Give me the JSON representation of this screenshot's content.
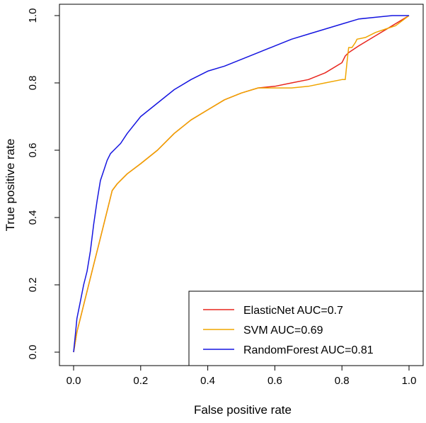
{
  "chart_data": {
    "type": "line",
    "title": "",
    "xlabel": "False positive rate",
    "ylabel": "True positive rate",
    "xlim": [
      0,
      1
    ],
    "ylim": [
      0,
      1
    ],
    "xticks": [
      "0.0",
      "0.2",
      "0.4",
      "0.6",
      "0.8",
      "1.0"
    ],
    "yticks": [
      "0.0",
      "0.2",
      "0.4",
      "0.6",
      "0.8",
      "1.0"
    ],
    "grid": false,
    "legend_position": "bottom-right",
    "series": [
      {
        "name": "ElasticNet",
        "legend_label": "ElasticNet AUC=0.7",
        "color": "#e8261e",
        "x": [
          0,
          0.005,
          0.01,
          0.02,
          0.03,
          0.045,
          0.06,
          0.075,
          0.09,
          0.105,
          0.115,
          0.13,
          0.16,
          0.2,
          0.25,
          0.3,
          0.35,
          0.4,
          0.45,
          0.5,
          0.55,
          0.6,
          0.65,
          0.7,
          0.75,
          0.8,
          0.81,
          0.82,
          0.85,
          0.9,
          0.95,
          1.0
        ],
        "y": [
          0,
          0.03,
          0.06,
          0.1,
          0.14,
          0.2,
          0.26,
          0.32,
          0.38,
          0.44,
          0.48,
          0.5,
          0.53,
          0.56,
          0.6,
          0.65,
          0.69,
          0.72,
          0.75,
          0.77,
          0.785,
          0.79,
          0.8,
          0.81,
          0.83,
          0.86,
          0.88,
          0.89,
          0.91,
          0.94,
          0.97,
          1.0
        ]
      },
      {
        "name": "SVM",
        "legend_label": "SVM AUC=0.69",
        "color": "#f0a500",
        "x": [
          0,
          0.005,
          0.01,
          0.02,
          0.03,
          0.045,
          0.06,
          0.075,
          0.09,
          0.105,
          0.115,
          0.13,
          0.16,
          0.2,
          0.25,
          0.3,
          0.35,
          0.4,
          0.45,
          0.5,
          0.55,
          0.56,
          0.6,
          0.65,
          0.7,
          0.75,
          0.8,
          0.81,
          0.815,
          0.82,
          0.83,
          0.84,
          0.845,
          0.87,
          0.9,
          0.93,
          0.96,
          0.98,
          1.0
        ],
        "y": [
          0,
          0.03,
          0.06,
          0.1,
          0.14,
          0.2,
          0.26,
          0.32,
          0.38,
          0.44,
          0.48,
          0.5,
          0.53,
          0.56,
          0.6,
          0.65,
          0.69,
          0.72,
          0.75,
          0.77,
          0.785,
          0.785,
          0.785,
          0.785,
          0.79,
          0.8,
          0.81,
          0.81,
          0.86,
          0.905,
          0.905,
          0.92,
          0.93,
          0.935,
          0.95,
          0.96,
          0.97,
          0.985,
          1.0
        ]
      },
      {
        "name": "RandomForest",
        "legend_label": "RandomForest AUC=0.81",
        "color": "#1515e0",
        "x": [
          0,
          0.005,
          0.01,
          0.02,
          0.03,
          0.04,
          0.05,
          0.06,
          0.07,
          0.08,
          0.09,
          0.1,
          0.11,
          0.12,
          0.14,
          0.16,
          0.2,
          0.25,
          0.3,
          0.35,
          0.4,
          0.45,
          0.5,
          0.55,
          0.6,
          0.65,
          0.7,
          0.75,
          0.8,
          0.85,
          0.9,
          0.95,
          1.0
        ],
        "y": [
          0,
          0.05,
          0.1,
          0.15,
          0.2,
          0.24,
          0.3,
          0.38,
          0.45,
          0.51,
          0.54,
          0.57,
          0.59,
          0.6,
          0.62,
          0.65,
          0.7,
          0.74,
          0.78,
          0.81,
          0.835,
          0.85,
          0.87,
          0.89,
          0.91,
          0.93,
          0.945,
          0.96,
          0.975,
          0.99,
          0.995,
          1.0,
          1.0
        ]
      }
    ]
  }
}
